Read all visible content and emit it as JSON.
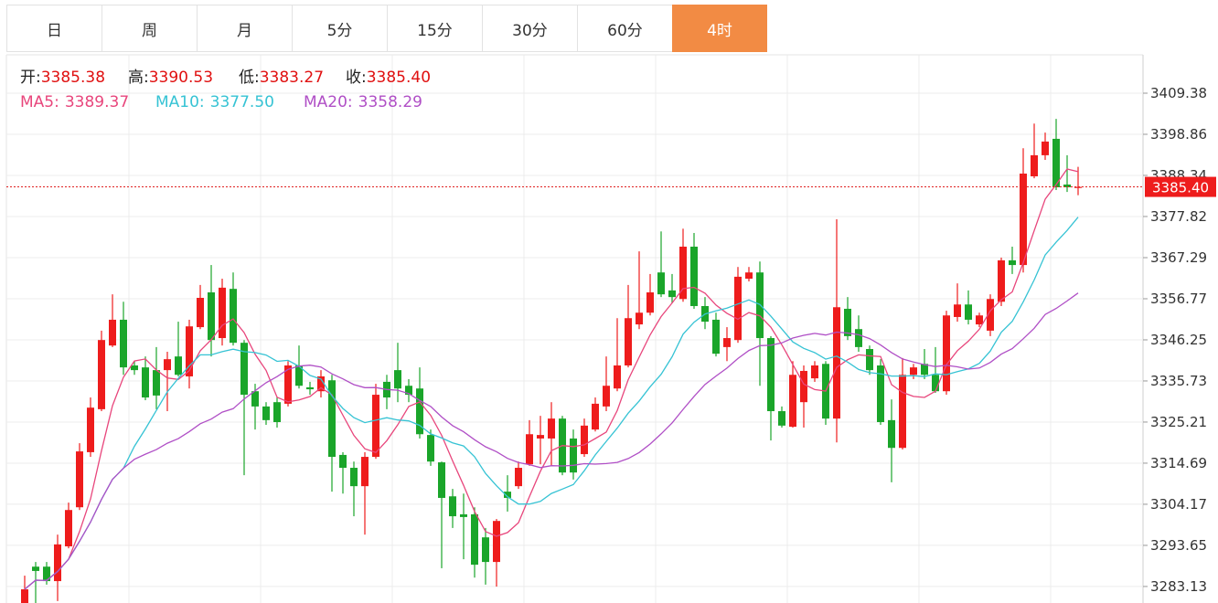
{
  "tabs": {
    "items": [
      "日",
      "周",
      "月",
      "5分",
      "15分",
      "30分",
      "60分",
      "4时"
    ],
    "active": 7
  },
  "chart_data": {
    "type": "candlestick",
    "ohlc_info": [
      {
        "label": "开:",
        "value": "3385.38"
      },
      {
        "label": "高:",
        "value": "3390.53"
      },
      {
        "label": "低:",
        "value": "3383.27"
      },
      {
        "label": "收:",
        "value": "3385.40"
      }
    ],
    "ma_info": [
      {
        "name": "MA5:",
        "value": "3389.37",
        "color": "#e8467c"
      },
      {
        "name": "MA10:",
        "value": "3377.50",
        "color": "#36c3d4"
      },
      {
        "name": "MA20:",
        "value": "3358.29",
        "color": "#b04fc6"
      }
    ],
    "up_color": "#ee1c1c",
    "down_color": "#1aa52a",
    "open": [
      3278.9,
      3288.2,
      3288.2,
      3284.5,
      3293.4,
      3303.4,
      3317.5,
      3328.5,
      3344.8,
      3351.4,
      3339.7,
      3339.2,
      3338.5,
      3338.5,
      3342.0,
      3336.9,
      3349.5,
      3358.4,
      3346.7,
      3359.3,
      3345.5,
      3333.1,
      3329.2,
      3330.3,
      3329.9,
      3339.7,
      3334.1,
      3333.1,
      3335.9,
      3316.8,
      3313.5,
      3308.8,
      3316.3,
      3335.5,
      3338.5,
      3334.5,
      3333.8,
      3321.9,
      3314.9,
      3306.2,
      3301.6,
      3301.6,
      3295.7,
      3289.4,
      3307.4,
      3308.8,
      3314.4,
      3321.0,
      3321.0,
      3326.1,
      3321.0,
      3317.0,
      3323.3,
      3329.2,
      3333.8,
      3339.7,
      3350.2,
      3353.2,
      3363.5,
      3358.9,
      3356.7,
      3370.1,
      3354.9,
      3351.4,
      3344.4,
      3346.2,
      3361.9,
      3363.5,
      3346.7,
      3328.0,
      3324.0,
      3330.3,
      3336.4,
      3340.1,
      3326.1,
      3354.2,
      3349.0,
      3343.9,
      3339.7,
      3325.7,
      3318.6,
      3337.3,
      3340.1,
      3337.3,
      3333.1,
      3352.1,
      3355.3,
      3350.2,
      3348.6,
      3356.0,
      3366.6,
      3365.4,
      3388.1,
      3393.5,
      3397.7,
      3386.0,
      3385.38
    ],
    "high": [
      3285.9,
      3289.4,
      3289.4,
      3296.4,
      3304.6,
      3319.8,
      3331.5,
      3348.6,
      3357.9,
      3356.0,
      3340.8,
      3342.0,
      3344.4,
      3343.2,
      3350.9,
      3351.4,
      3360.3,
      3365.4,
      3361.9,
      3363.5,
      3346.2,
      3335.0,
      3330.3,
      3331.5,
      3340.8,
      3344.8,
      3335.5,
      3338.5,
      3337.3,
      3317.5,
      3315.1,
      3317.5,
      3335.0,
      3337.3,
      3345.5,
      3336.2,
      3339.2,
      3323.3,
      3315.1,
      3308.1,
      3306.9,
      3303.4,
      3298.1,
      3300.4,
      3311.6,
      3315.1,
      3325.7,
      3326.8,
      3330.3,
      3326.8,
      3323.3,
      3326.1,
      3331.5,
      3342.0,
      3351.8,
      3360.3,
      3368.9,
      3363.1,
      3374.0,
      3363.1,
      3374.7,
      3373.6,
      3357.2,
      3353.2,
      3349.5,
      3364.9,
      3364.9,
      3366.3,
      3347.2,
      3329.2,
      3340.8,
      3339.7,
      3340.8,
      3340.8,
      3377.1,
      3357.2,
      3352.5,
      3344.8,
      3341.3,
      3331.0,
      3341.6,
      3340.1,
      3343.9,
      3344.4,
      3353.7,
      3360.7,
      3358.9,
      3353.2,
      3357.9,
      3367.3,
      3370.1,
      3395.3,
      3401.6,
      3399.3,
      3402.8,
      3393.5,
      3390.53
    ],
    "low": [
      3278.9,
      3278.9,
      3283.6,
      3279.4,
      3292.9,
      3302.7,
      3316.3,
      3328.0,
      3344.4,
      3337.3,
      3337.3,
      3330.8,
      3328.5,
      3328.0,
      3336.9,
      3333.8,
      3349.0,
      3342.0,
      3344.8,
      3344.8,
      3311.6,
      3323.3,
      3324.5,
      3323.8,
      3329.2,
      3333.8,
      3332.2,
      3331.5,
      3307.4,
      3306.9,
      3301.1,
      3296.4,
      3315.8,
      3328.5,
      3330.3,
      3330.3,
      3321.0,
      3314.0,
      3287.8,
      3298.1,
      3290.1,
      3285.4,
      3283.6,
      3283.1,
      3302.3,
      3308.1,
      3314.0,
      3314.4,
      3314.0,
      3311.6,
      3310.5,
      3316.3,
      3322.8,
      3328.0,
      3333.1,
      3339.2,
      3349.0,
      3352.5,
      3357.2,
      3355.6,
      3356.0,
      3354.2,
      3349.0,
      3342.0,
      3340.8,
      3345.5,
      3361.2,
      3334.5,
      3320.5,
      3323.8,
      3323.8,
      3323.8,
      3335.5,
      3324.5,
      3320.0,
      3346.2,
      3343.2,
      3337.3,
      3324.5,
      3309.8,
      3318.2,
      3336.2,
      3336.2,
      3332.7,
      3332.2,
      3350.9,
      3350.2,
      3349.5,
      3347.2,
      3354.9,
      3363.1,
      3363.5,
      3387.6,
      3392.3,
      3384.6,
      3384.1,
      3383.27
    ],
    "close": [
      3282.4,
      3287.1,
      3284.5,
      3293.9,
      3302.7,
      3317.7,
      3328.9,
      3346.2,
      3351.4,
      3339.2,
      3338.5,
      3331.5,
      3332.0,
      3341.3,
      3337.3,
      3349.7,
      3357.0,
      3346.2,
      3359.6,
      3345.5,
      3332.2,
      3329.2,
      3325.7,
      3325.2,
      3339.7,
      3334.5,
      3333.6,
      3336.9,
      3316.3,
      3313.5,
      3308.8,
      3316.3,
      3332.2,
      3331.5,
      3333.8,
      3332.2,
      3322.1,
      3315.1,
      3305.8,
      3301.1,
      3300.9,
      3288.7,
      3289.4,
      3299.9,
      3305.8,
      3313.5,
      3322.1,
      3321.9,
      3326.1,
      3312.3,
      3312.3,
      3324.3,
      3329.9,
      3334.5,
      3339.7,
      3351.8,
      3353.2,
      3358.4,
      3357.9,
      3357.2,
      3370.1,
      3354.9,
      3350.9,
      3342.7,
      3346.7,
      3362.4,
      3363.5,
      3346.7,
      3328.0,
      3324.3,
      3337.3,
      3338.3,
      3339.7,
      3326.1,
      3354.6,
      3347.2,
      3344.4,
      3338.5,
      3325.2,
      3318.6,
      3337.3,
      3339.2,
      3337.3,
      3333.1,
      3352.5,
      3355.3,
      3351.4,
      3352.5,
      3356.7,
      3366.6,
      3365.4,
      3388.8,
      3393.5,
      3397.0,
      3385.3,
      3385.3,
      3385.4
    ],
    "last_price": {
      "value": 3385.4,
      "label": "3385.40"
    },
    "ylim": [
      3278.9,
      3419.2
    ],
    "yticks": [
      3409.38,
      3398.86,
      3388.34,
      3377.82,
      3367.29,
      3356.77,
      3346.25,
      3335.73,
      3325.21,
      3314.69,
      3304.17,
      3293.65,
      3283.13
    ],
    "grid": true
  }
}
